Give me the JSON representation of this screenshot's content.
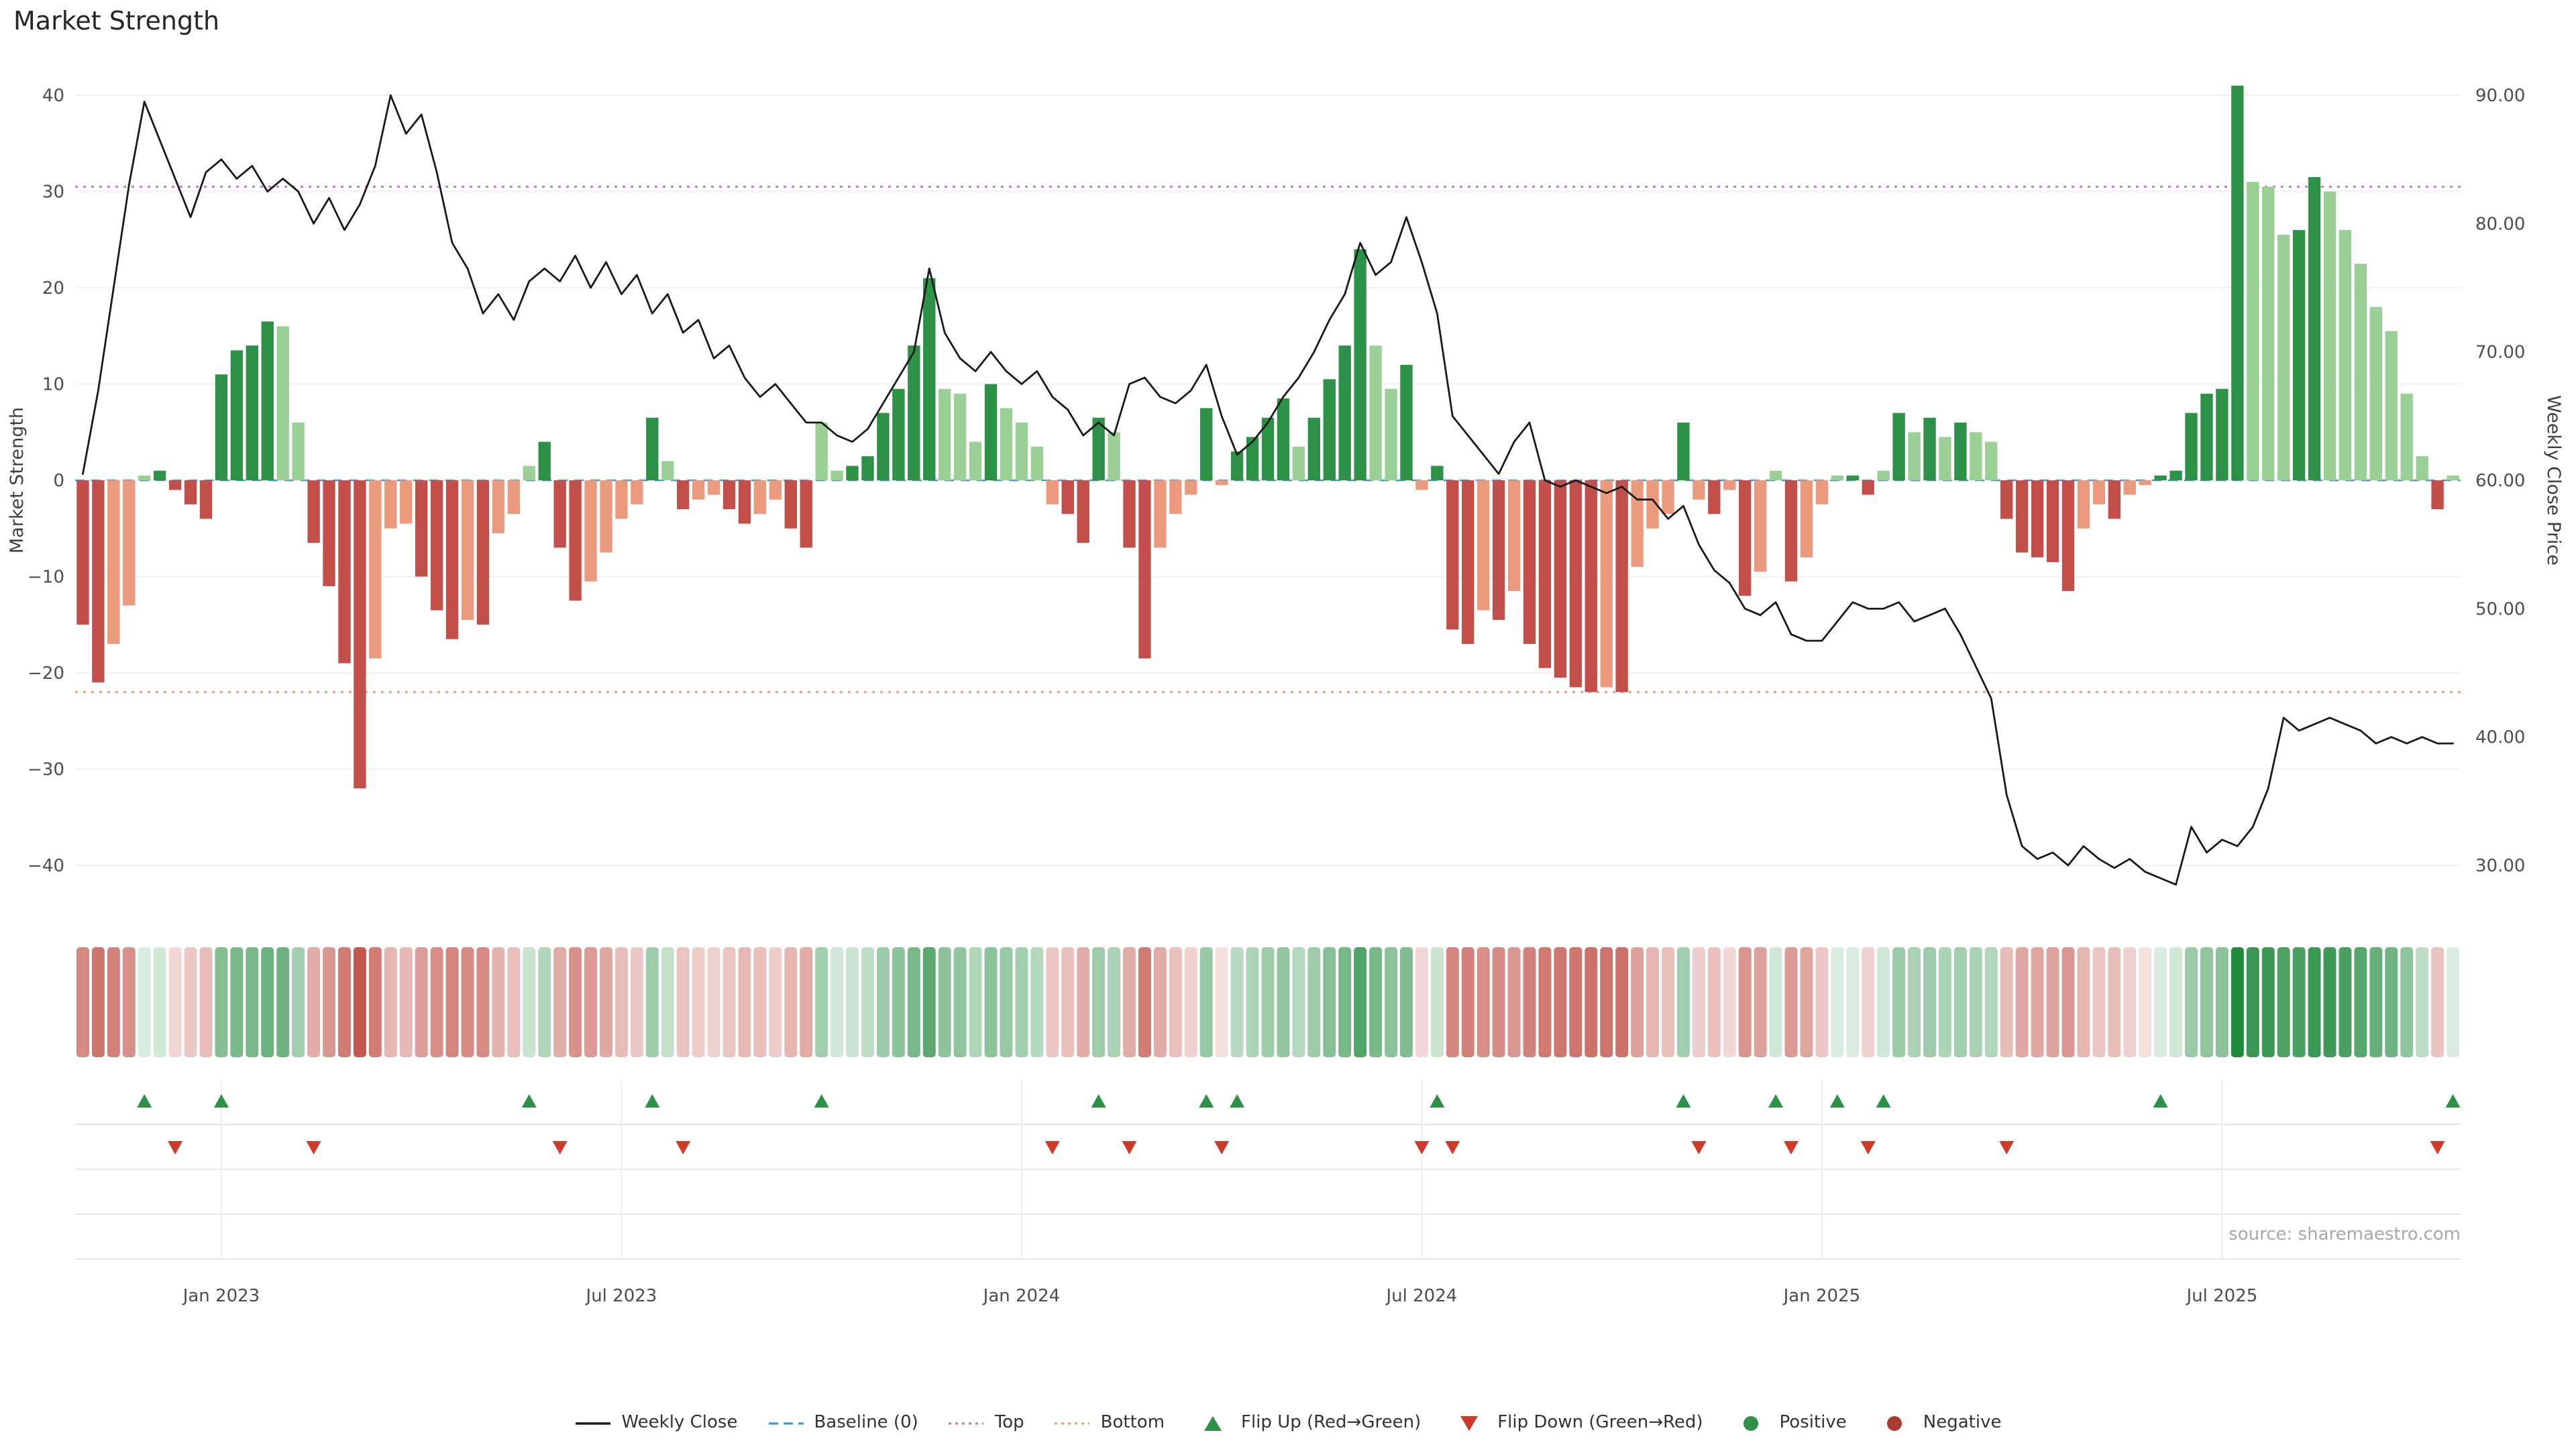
{
  "page": {
    "title": "Market Strength",
    "source": "source: sharemaestro.com"
  },
  "axes": {
    "left": {
      "label": "Market Strength",
      "tick_values": [
        40,
        30,
        20,
        10,
        0,
        -10,
        -20,
        -30,
        -40
      ]
    },
    "right": {
      "label": "Weekly Close Price",
      "tick_values": [
        90,
        80,
        70,
        60,
        50,
        40,
        30
      ],
      "tick_labels": [
        "90.00",
        "80.00",
        "70.00",
        "60.00",
        "50.00",
        "40.00",
        "30.00"
      ]
    },
    "x": {
      "tick_indices": [
        9,
        35,
        61,
        87,
        113,
        139
      ],
      "tick_labels": [
        "Jan 2023",
        "Jul 2023",
        "Jan 2024",
        "Jul 2024",
        "Jan 2025",
        "Jul 2025"
      ]
    }
  },
  "legend": {
    "items": [
      {
        "label": "Weekly Close",
        "swatch": "line",
        "color": "#1a1a1a"
      },
      {
        "label": "Baseline (0)",
        "swatch": "dashed",
        "color": "#4a98c9"
      },
      {
        "label": "Top",
        "swatch": "dotted",
        "color": "#c47ec4"
      },
      {
        "label": "Bottom",
        "swatch": "dotted",
        "color": "#eaa36c"
      },
      {
        "label": "Flip Up (Red→Green)",
        "swatch": "triangle-up",
        "color": "#2d9147"
      },
      {
        "label": "Flip Down (Green→Red)",
        "swatch": "triangle-down",
        "color": "#d03a2b"
      },
      {
        "label": "Positive",
        "swatch": "dot",
        "color": "#2d9147"
      },
      {
        "label": "Negative",
        "swatch": "dot",
        "color": "#a93a32"
      }
    ]
  },
  "chart_data": {
    "type": "combo",
    "title": "Market Strength",
    "x_unit": "week",
    "point_count": 155,
    "left_ylim": [
      -43,
      43
    ],
    "right_ylim": [
      28,
      92
    ],
    "grid": "horizontal-light",
    "reference_lines": {
      "baseline": {
        "value": 0,
        "style": "dashed",
        "color": "#4a98c9"
      },
      "top": {
        "value": 30.5,
        "style": "dotted",
        "color": "#c47ec4"
      },
      "bottom": {
        "value": -22,
        "style": "dotted",
        "color": "#eaa36c"
      }
    },
    "series": [
      {
        "name": "Market Strength",
        "type": "bar",
        "axis": "left",
        "values": [
          -15,
          -21,
          -17,
          -13,
          0.5,
          1,
          -1,
          -2.5,
          -4,
          11,
          13.5,
          14,
          16.5,
          16,
          6,
          -6.5,
          -11,
          -19,
          -32,
          -18.5,
          -5,
          -4.5,
          -10,
          -13.5,
          -16.5,
          -14.5,
          -15,
          -5.5,
          -3.5,
          1.5,
          4,
          -7,
          -12.5,
          -10.5,
          -7.5,
          -4,
          -2.5,
          6.5,
          2,
          -3,
          -2,
          -1.5,
          -3,
          -4.5,
          -3.5,
          -2,
          -5,
          -7,
          6,
          1,
          1.5,
          2.5,
          7,
          9.5,
          14,
          21,
          9.5,
          9,
          4,
          10,
          7.5,
          6,
          3.5,
          -2.5,
          -3.5,
          -6.5,
          6.5,
          5,
          -7,
          -18.5,
          -7,
          -3.5,
          -1.5,
          7.5,
          -0.5,
          3,
          4.5,
          6.5,
          8.5,
          3.5,
          6.5,
          10.5,
          14,
          24,
          14,
          9.5,
          12,
          -1,
          1.5,
          -15.5,
          -17,
          -13.5,
          -14.5,
          -11.5,
          -17,
          -19.5,
          -20.5,
          -21.5,
          -22,
          -21.5,
          -22,
          -9,
          -5,
          -3.5,
          6,
          -2,
          -3.5,
          -1,
          -12,
          -9.5,
          1,
          -10.5,
          -8,
          -2.5,
          0.5,
          0.5,
          -1.5,
          1,
          7,
          5,
          6.5,
          4.5,
          6,
          5,
          4,
          -4,
          -7.5,
          -8,
          -8.5,
          -11.5,
          -5,
          -2.5,
          -4,
          -1.5,
          -0.5,
          0.5,
          1,
          7,
          9,
          9.5,
          41,
          31,
          30.5,
          25.5,
          26,
          31.5,
          30,
          26,
          22.5,
          18,
          15.5,
          9,
          2.5,
          -3,
          0.5
        ]
      },
      {
        "name": "Weekly Close",
        "type": "line",
        "axis": "right",
        "values": [
          60.5,
          67,
          75,
          83,
          89.5,
          86.5,
          83.5,
          80.5,
          84,
          85,
          83.5,
          84.5,
          82.5,
          83.5,
          82.5,
          80,
          82,
          79.5,
          81.5,
          84.5,
          90,
          87,
          88.5,
          84,
          78.5,
          76.5,
          73,
          74.5,
          72.5,
          75.5,
          76.5,
          75.5,
          77.5,
          75,
          77,
          74.5,
          76,
          73,
          74.5,
          71.5,
          72.5,
          69.5,
          70.5,
          68,
          66.5,
          67.5,
          66,
          64.5,
          64.5,
          63.5,
          63,
          64,
          66,
          68,
          70,
          76.5,
          71.5,
          69.5,
          68.5,
          70,
          68.5,
          67.5,
          68.5,
          66.5,
          65.5,
          63.5,
          64.5,
          63.5,
          67.5,
          68,
          66.5,
          66,
          67,
          69,
          65,
          62,
          63,
          64.5,
          66.5,
          68,
          70,
          72.5,
          74.5,
          78.5,
          76,
          77,
          80.5,
          77,
          73,
          65,
          63.5,
          62,
          60.5,
          63,
          64.5,
          60,
          59.5,
          60,
          59.5,
          59,
          59.5,
          58.5,
          58.5,
          57,
          58,
          55,
          53,
          52,
          50,
          49.5,
          50.5,
          48,
          47.5,
          47.5,
          49,
          50.5,
          50,
          50,
          50.5,
          49,
          49.5,
          50,
          48,
          45.5,
          43,
          35.5,
          31.5,
          30.5,
          31,
          30,
          31.5,
          30.5,
          29.8,
          30.5,
          29.5,
          29,
          28.5,
          33,
          31,
          32,
          31.5,
          33,
          36,
          41.5,
          40.5,
          41,
          41.5,
          41,
          40.5,
          39.5,
          40,
          39.5,
          40,
          39.5,
          39.5
        ]
      }
    ],
    "flip_up_indices": [
      4,
      9,
      29,
      37,
      48,
      66,
      73,
      75,
      88,
      104,
      110,
      114,
      117,
      135,
      154
    ],
    "flip_down_indices": [
      6,
      15,
      31,
      39,
      63,
      68,
      74,
      87,
      89,
      105,
      111,
      116,
      125,
      153
    ],
    "colors": {
      "bar_positive_dark": "#2e9148",
      "bar_positive_light": "#9ad096",
      "bar_negative_dark": "#c24f4a",
      "bar_negative_light": "#eb9a7e",
      "line": "#1a1a1a",
      "baseline": "#4a98c9",
      "top_line": "#c47ec4",
      "bottom_line": "#eaa36c",
      "flip_up": "#2d9147",
      "flip_down": "#d03a2b",
      "heat_positive": "#1f8a3c",
      "heat_negative": "#bc4338",
      "grid": "#f0f0f0",
      "lane_line": "#e7e7e7",
      "tick_text": "#4d4d4d"
    }
  }
}
